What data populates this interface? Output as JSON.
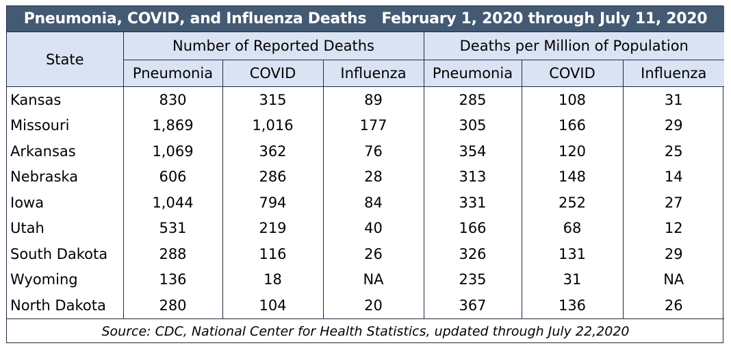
{
  "chart_data": {
    "type": "table",
    "title": "Pneumonia, COVID, and Influenza Deaths",
    "subtitle": "February 1, 2020 through July 11, 2020",
    "row_header": "State",
    "column_groups": [
      {
        "label": "Number of Reported Deaths",
        "columns": [
          "Pneumonia",
          "COVID",
          "Influenza"
        ]
      },
      {
        "label": "Deaths per Million of Population",
        "columns": [
          "Pneumonia",
          "COVID",
          "Influenza"
        ]
      }
    ],
    "rows": [
      {
        "state": "Kansas",
        "values": [
          "830",
          "315",
          "89",
          "285",
          "108",
          "31"
        ]
      },
      {
        "state": "Missouri",
        "values": [
          "1,869",
          "1,016",
          "177",
          "305",
          "166",
          "29"
        ]
      },
      {
        "state": "Arkansas",
        "values": [
          "1,069",
          "362",
          "76",
          "354",
          "120",
          "25"
        ]
      },
      {
        "state": "Nebraska",
        "values": [
          "606",
          "286",
          "28",
          "313",
          "148",
          "14"
        ]
      },
      {
        "state": "Iowa",
        "values": [
          "1,044",
          "794",
          "84",
          "331",
          "252",
          "27"
        ]
      },
      {
        "state": "Utah",
        "values": [
          "531",
          "219",
          "40",
          "166",
          "68",
          "12"
        ]
      },
      {
        "state": "South Dakota",
        "values": [
          "288",
          "116",
          "26",
          "326",
          "131",
          "29"
        ]
      },
      {
        "state": "Wyoming",
        "values": [
          "136",
          "18",
          "NA",
          "235",
          "31",
          "NA"
        ]
      },
      {
        "state": "North Dakota",
        "values": [
          "280",
          "104",
          "20",
          "367",
          "136",
          "26"
        ]
      }
    ],
    "source": "Source: CDC, National Center for Health Statistics, updated through July 22,2020"
  },
  "colors": {
    "title_bg": "#445a73",
    "header_bg": "#dae3f3",
    "border": "#1f2a3c"
  }
}
